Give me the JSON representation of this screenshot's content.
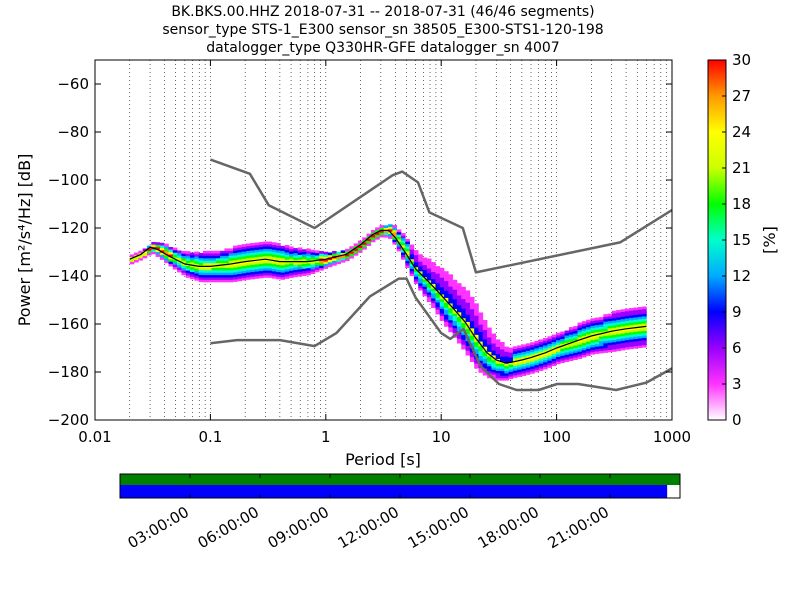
{
  "title_lines": [
    "BK.BKS.00.HHZ   2018-07-31 -- 2018-07-31  (46/46 segments)",
    "sensor_type STS-1_E300 sensor_sn 38505_E300-STS1-120-198",
    "datalogger_type Q330HR-GFE datalogger_sn 4007"
  ],
  "chart_data": [
    {
      "type": "heatmap",
      "title": "BK.BKS.00.HHZ   2018-07-31 -- 2018-07-31  (46/46 segments)",
      "xlabel": "Period [s]",
      "ylabel": "Power [m²/s⁴/Hz] [dB]",
      "x_scale": "log",
      "xlim": [
        0.01,
        1000
      ],
      "ylim": [
        -200,
        -50
      ],
      "x_ticks": [
        "0.01",
        "0.1",
        "1",
        "10",
        "100",
        "1000"
      ],
      "x_tick_values": [
        0.01,
        0.1,
        1,
        10,
        100,
        1000
      ],
      "y_ticks": [
        "−200",
        "−180",
        "−160",
        "−140",
        "−120",
        "−100",
        "−80",
        "−60"
      ],
      "y_tick_values": [
        -200,
        -180,
        -160,
        -140,
        -120,
        -100,
        -80,
        -60
      ],
      "grid": "dotted vertical",
      "colorbar": {
        "label": "[%]",
        "range": [
          0,
          30
        ],
        "ticks": [
          "0",
          "3",
          "6",
          "9",
          "12",
          "15",
          "18",
          "21",
          "24",
          "27",
          "30"
        ],
        "colormap": [
          "#ffffff",
          "#ff33ff",
          "#9900ff",
          "#0000ff",
          "#00aaff",
          "#00ffcc",
          "#00ff00",
          "#ccff00",
          "#ffff00",
          "#ff9900",
          "#ff0000"
        ]
      },
      "series": [
        {
          "name": "NHNM",
          "color": "#666666",
          "x": [
            0.1,
            0.22,
            0.32,
            0.8,
            3.8,
            4.6,
            6.3,
            7.9,
            15.4,
            20,
            354.8,
            1000
          ],
          "y": [
            -91.5,
            -97.4,
            -110.5,
            -120,
            -98,
            -96.5,
            -101,
            -113.5,
            -120,
            -138.5,
            -126,
            -112.5
          ]
        },
        {
          "name": "NLNM",
          "color": "#666666",
          "x": [
            0.1,
            0.17,
            0.4,
            0.8,
            1.24,
            2.4,
            4.3,
            5,
            6,
            10,
            12,
            15.6,
            21.9,
            31.6,
            45,
            70,
            101,
            154,
            328,
            600,
            1000
          ],
          "y": [
            -168,
            -166.7,
            -166.7,
            -169.2,
            -163.7,
            -148.6,
            -141.1,
            -141.1,
            -149,
            -163.8,
            -166.2,
            -162.1,
            -177.5,
            -185,
            -187.5,
            -187.5,
            -185,
            -185,
            -187.5,
            -184.4,
            -178.5
          ]
        },
        {
          "name": "mode",
          "color": "#000000",
          "x": [
            0.02,
            0.025,
            0.03,
            0.035,
            0.045,
            0.06,
            0.08,
            0.1,
            0.15,
            0.2,
            0.3,
            0.4,
            0.5,
            0.7,
            1.0,
            1.5,
            2.0,
            2.5,
            3.0,
            3.5,
            4.0,
            5.0,
            6.0,
            8.0,
            10,
            13,
            16,
            20,
            25,
            30,
            35,
            40,
            50,
            60,
            80,
            100,
            150,
            200,
            300,
            400,
            600
          ],
          "y": [
            -133,
            -131,
            -128,
            -129,
            -132,
            -135,
            -136,
            -136,
            -135,
            -134,
            -133,
            -134,
            -134,
            -134,
            -133,
            -131,
            -127,
            -123,
            -121,
            -121,
            -124,
            -131,
            -137,
            -143,
            -148,
            -154,
            -159,
            -166,
            -172,
            -175,
            -176,
            -176,
            -175,
            -174,
            -172,
            -170,
            -167,
            -165,
            -163,
            -162,
            -161
          ]
        }
      ],
      "density": {
        "x": [
          0.02,
          0.025,
          0.03,
          0.035,
          0.045,
          0.06,
          0.08,
          0.1,
          0.15,
          0.2,
          0.3,
          0.4,
          0.5,
          0.7,
          1.0,
          1.5,
          2.0,
          2.5,
          3.0,
          3.5,
          4.0,
          5.0,
          6.0,
          8.0,
          10,
          13,
          16,
          20,
          25,
          30,
          35,
          40,
          50,
          60,
          80,
          100,
          150,
          200,
          300,
          400,
          600
        ],
        "spread_db": [
          1.5,
          1.5,
          2,
          3,
          4,
          5,
          6,
          6,
          7,
          7,
          7,
          7,
          6,
          5,
          3,
          2,
          2,
          2,
          2,
          3,
          4,
          6,
          7,
          9,
          11,
          12,
          13,
          13,
          10,
          8,
          7,
          6,
          6,
          6,
          6,
          6,
          7,
          7,
          8,
          8,
          8
        ]
      }
    },
    {
      "type": "bar",
      "title": "",
      "time_ticks": [
        "03:00:00",
        "06:00:00",
        "09:00:00",
        "12:00:00",
        "15:00:00",
        "18:00:00",
        "21:00:00"
      ],
      "time_tick_hours": [
        3,
        6,
        9,
        12,
        15,
        18,
        21
      ],
      "xlim_hours": [
        0,
        24
      ],
      "bars": [
        {
          "name": "available",
          "color": "#008000",
          "start_hours": 0,
          "end_hours": 24
        },
        {
          "name": "used",
          "color": "#0000ff",
          "start_hours": 0,
          "end_hours": 23.45
        }
      ]
    }
  ]
}
